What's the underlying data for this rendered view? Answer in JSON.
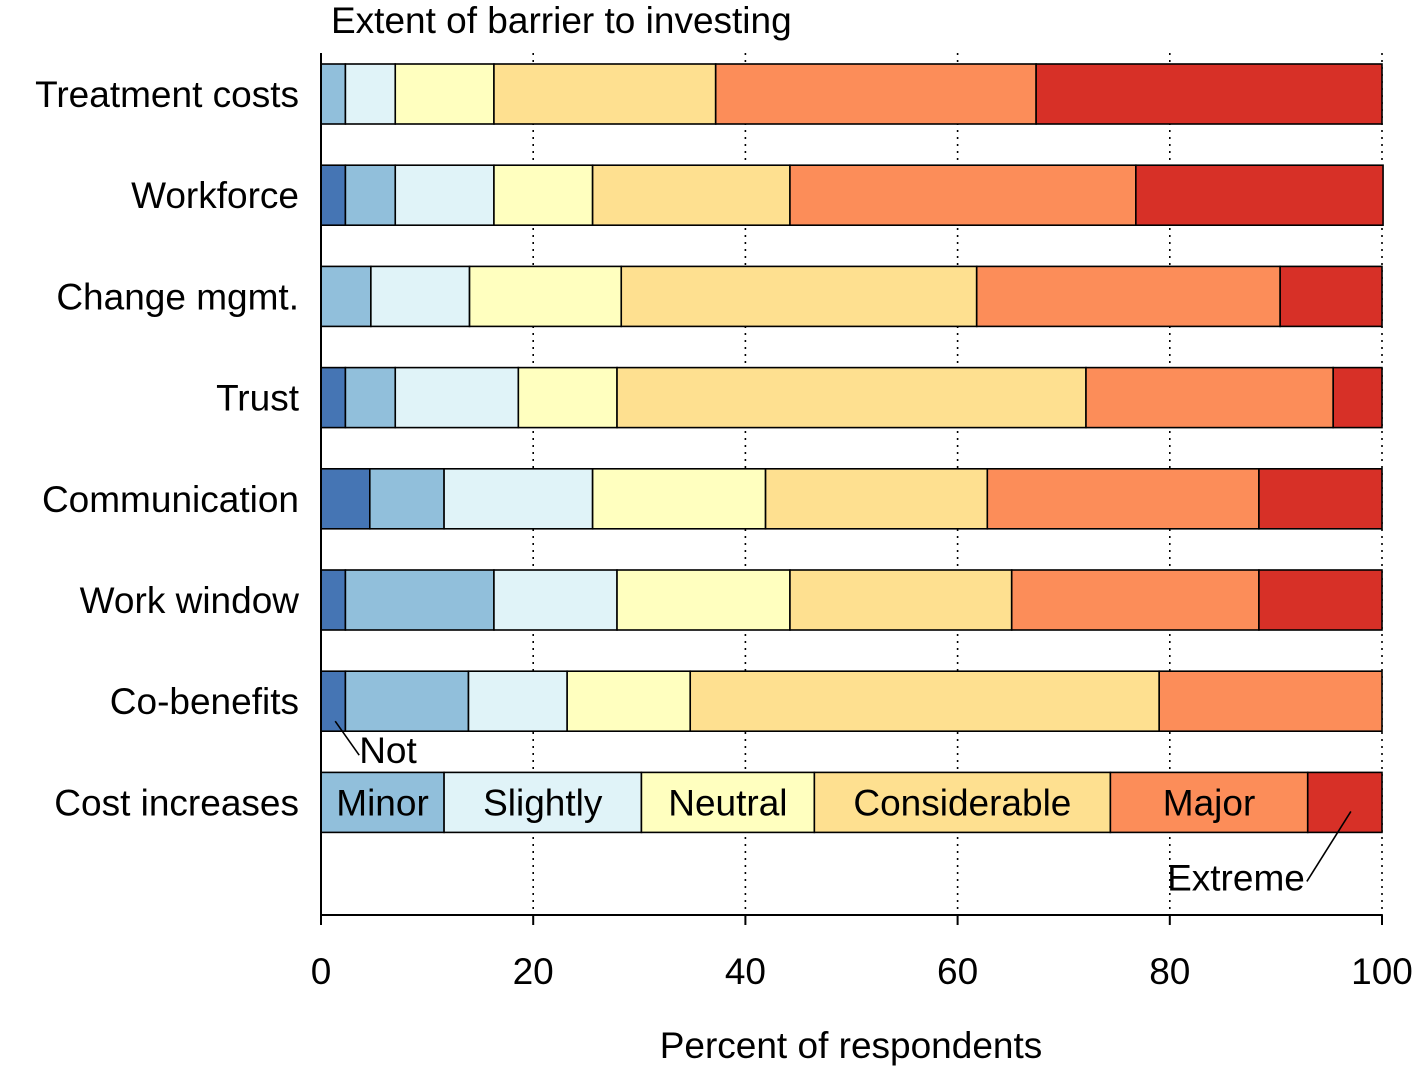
{
  "chart_data": {
    "type": "bar",
    "orientation": "horizontal",
    "stacked": true,
    "title": "Extent of barrier to investing",
    "xlabel": "Percent of respondents",
    "ylabel": "",
    "xlim": [
      0,
      100
    ],
    "xticks": [
      0,
      20,
      40,
      60,
      80,
      100
    ],
    "grid": "vertical dotted",
    "categories": [
      "Treatment costs",
      "Workforce",
      "Change mgmt.",
      "Trust",
      "Communication",
      "Work window",
      "Co-benefits",
      "Cost increases"
    ],
    "series": [
      {
        "name": "Not",
        "color": "#4575b4",
        "values": [
          0.0,
          2.3,
          0.0,
          2.3,
          4.6,
          2.3,
          2.3,
          0.0
        ]
      },
      {
        "name": "Minor",
        "color": "#91bfdb",
        "values": [
          2.3,
          4.7,
          4.7,
          4.7,
          7.0,
          14.0,
          11.6,
          11.6
        ]
      },
      {
        "name": "Slightly",
        "color": "#e0f3f8",
        "values": [
          4.7,
          9.3,
          9.3,
          11.6,
          14.0,
          11.6,
          9.3,
          18.6
        ]
      },
      {
        "name": "Neutral",
        "color": "#ffffbf",
        "values": [
          9.3,
          9.3,
          14.3,
          9.3,
          16.3,
          16.3,
          11.6,
          16.3
        ]
      },
      {
        "name": "Considerable",
        "color": "#fee090",
        "values": [
          20.9,
          18.6,
          33.5,
          44.2,
          20.9,
          20.9,
          44.2,
          27.9
        ]
      },
      {
        "name": "Major",
        "color": "#fc8d59",
        "values": [
          30.2,
          32.6,
          28.6,
          23.3,
          25.6,
          23.3,
          21.0,
          18.6
        ]
      },
      {
        "name": "Extreme",
        "color": "#d73027",
        "values": [
          32.6,
          23.3,
          9.6,
          4.6,
          11.6,
          11.6,
          0.0,
          7.0
        ]
      }
    ],
    "legend": {
      "placement": "inside the Cost increases bar",
      "labels": [
        "Not",
        "Minor",
        "Slightly",
        "Neutral",
        "Considerable",
        "Major",
        "Extreme"
      ]
    }
  }
}
